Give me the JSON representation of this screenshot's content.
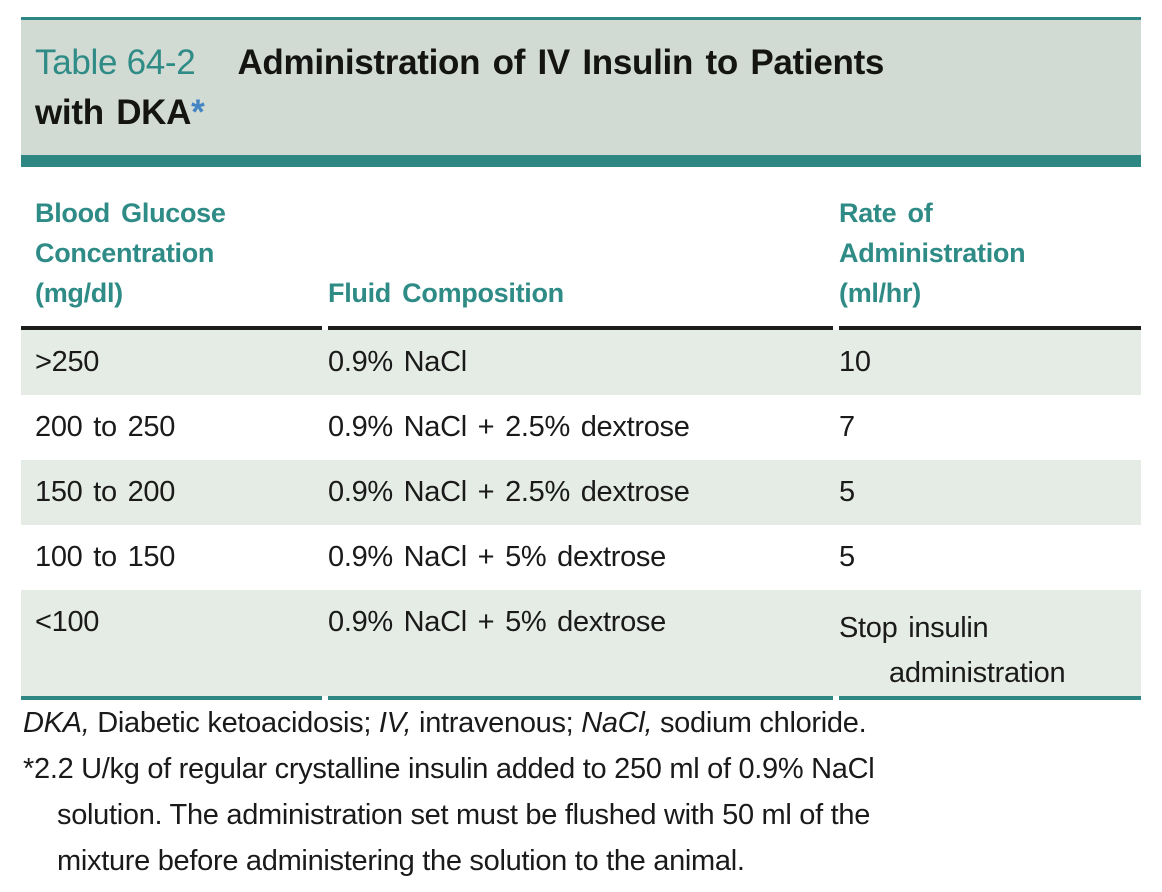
{
  "theme": {
    "teal": "#2E8783",
    "teal_text": "#2E8B86",
    "header_bg": "#D2DBD3",
    "row_alt_bg": "#E5EBE5",
    "asterisk_blue": "#4484C4",
    "rule_dark": "#1D1D1B",
    "text": "#1A1A1A"
  },
  "header": {
    "table_number": "Table 64-2",
    "title_line1": "Administration of IV Insulin to Patients",
    "title_line2": "with DKA",
    "footnote_marker": "*"
  },
  "columns": [
    {
      "line1": "Blood Glucose",
      "line2": "Concentration",
      "line3": "(mg/dl)"
    },
    {
      "line1": "Fluid Composition"
    },
    {
      "line1": "Rate of",
      "line2": "Administration",
      "line3": "(ml/hr)"
    }
  ],
  "rows": [
    {
      "glucose": ">250",
      "fluid": "0.9% NaCl",
      "rate": "10"
    },
    {
      "glucose": "200 to 250",
      "fluid": "0.9% NaCl + 2.5% dextrose",
      "rate": "7"
    },
    {
      "glucose": "150 to 200",
      "fluid": "0.9% NaCl + 2.5% dextrose",
      "rate": "5"
    },
    {
      "glucose": "100 to 150",
      "fluid": "0.9% NaCl + 5% dextrose",
      "rate": "5"
    },
    {
      "glucose": "<100",
      "fluid": "0.9% NaCl + 5% dextrose",
      "rate_line1": "Stop insulin",
      "rate_line2": "administration"
    }
  ],
  "footnotes": {
    "abbr": {
      "i1": "DKA,",
      "t1": " Diabetic ketoacidosis; ",
      "i2": "IV,",
      "t2": " intravenous; ",
      "i3": "NaCl,",
      "t3": " sodium chloride."
    },
    "note_line1": "*2.2 U/kg of regular crystalline insulin added to 250 ml of 0.9% NaCl",
    "note_line2": "solution. The administration set must be flushed with 50 ml of the",
    "note_line3": "mixture before administering the solution to the animal."
  }
}
